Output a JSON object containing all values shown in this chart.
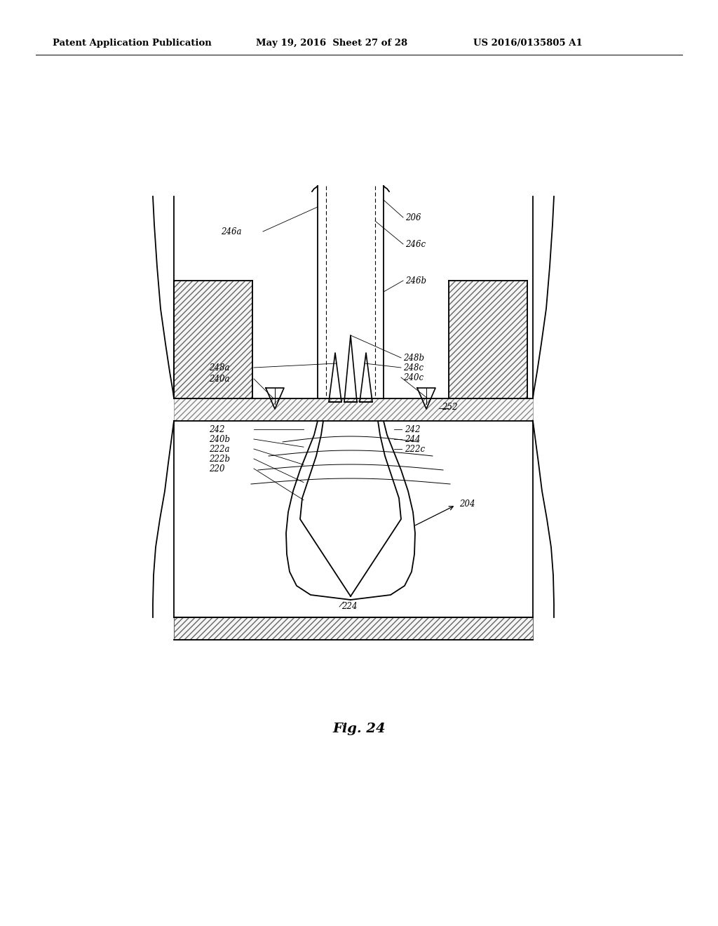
{
  "background_color": "#ffffff",
  "header_text": "Patent Application Publication",
  "header_date": "May 19, 2016  Sheet 27 of 28",
  "header_patent": "US 2016/0135805 A1",
  "figure_label": "Fig. 24",
  "line_color": "#000000",
  "hatch_color": "#aaaaaa",
  "lw": 1.3
}
